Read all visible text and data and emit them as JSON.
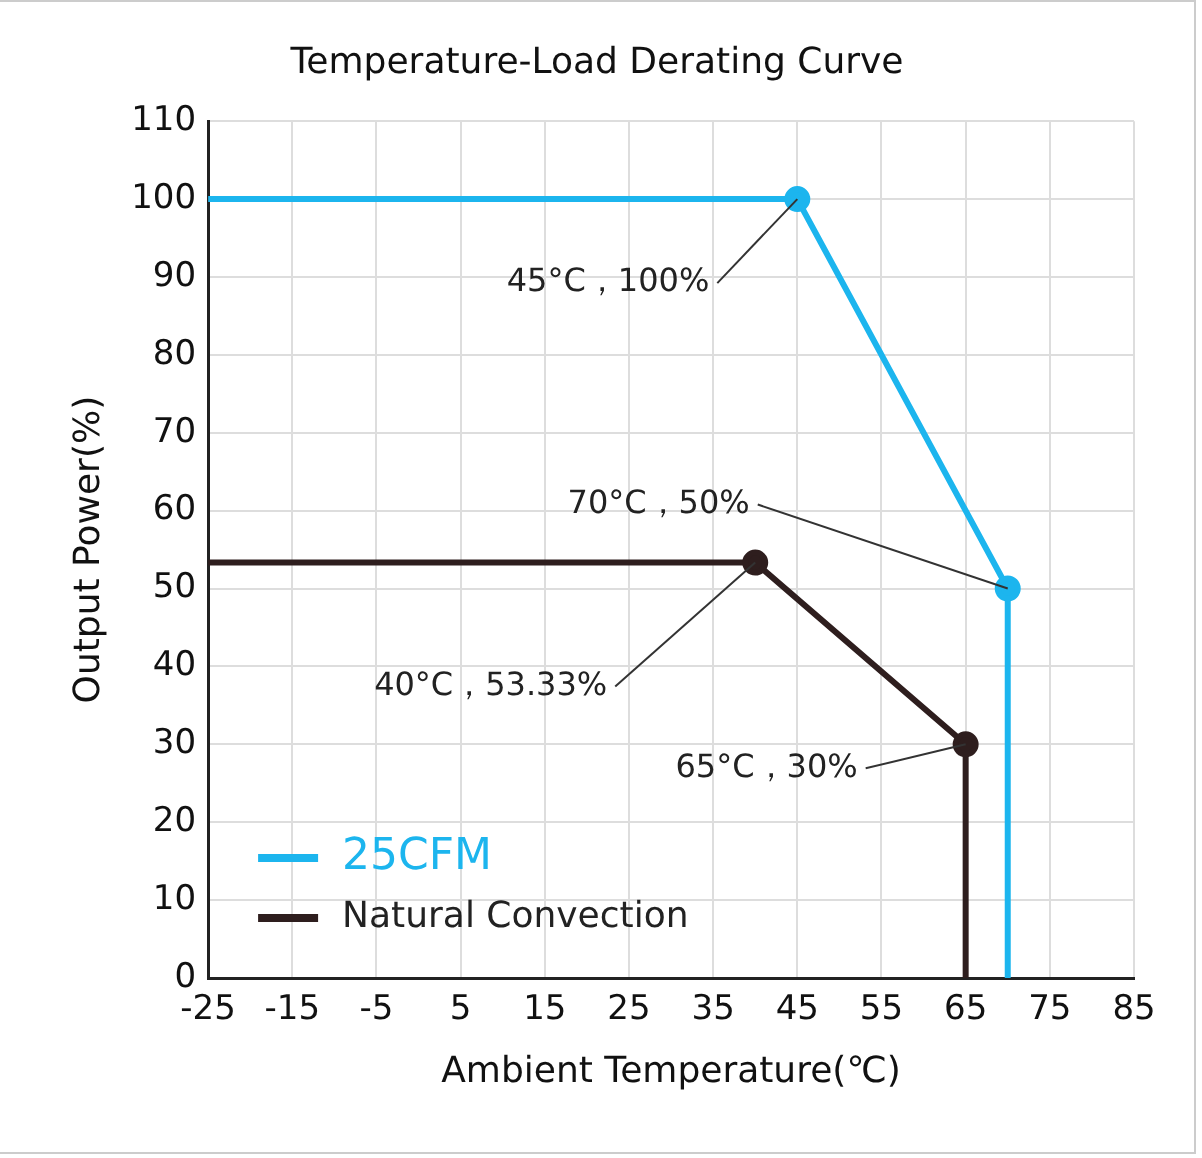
{
  "chart_data": {
    "type": "line",
    "title": "Temperature-Load Derating Curve",
    "xlabel": "Ambient Temperature(℃)",
    "ylabel": "Output Power(%)",
    "series": [
      {
        "name": "25CFM",
        "color": "#1cb5ee",
        "x": [
          -25,
          45,
          70,
          70
        ],
        "values": [
          100,
          100,
          50,
          0
        ]
      },
      {
        "name": "Natural Convection",
        "color": "#2e1e1e",
        "x": [
          -25,
          40,
          65,
          65
        ],
        "values": [
          53.33,
          53.33,
          30,
          0
        ]
      }
    ],
    "xlim": [
      -25,
      85
    ],
    "xticks": [
      -25,
      -15,
      -5,
      5,
      15,
      25,
      35,
      45,
      55,
      65,
      75,
      85
    ],
    "ylim": [
      0,
      110
    ],
    "yticks": [
      0,
      10,
      20,
      30,
      40,
      50,
      60,
      70,
      80,
      90,
      100,
      110
    ],
    "annotations": [
      {
        "text": "45°C，100%",
        "x": 45,
        "y": 100
      },
      {
        "text": "70°C，50%",
        "x": 70,
        "y": 50
      },
      {
        "text": "40°C，53.33%",
        "x": 40,
        "y": 53.33
      },
      {
        "text": "65°C，30%",
        "x": 65,
        "y": 30
      }
    ],
    "grid": true,
    "legend": "bottom left",
    "marker": "circle",
    "line_style": "solid"
  }
}
